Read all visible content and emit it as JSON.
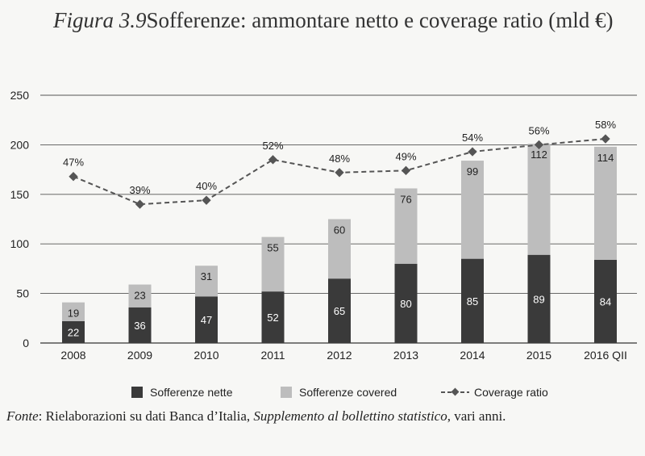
{
  "title": {
    "figure_label": "Figura 3.9",
    "text": "Sofferenze: ammontare netto e coverage ratio (mld €)"
  },
  "source": {
    "label": "Fonte",
    "text_before": ": Rielaborazioni su dati Banca d’Italia, ",
    "publication": "Supplemento al bollettino statistico",
    "text_after": ", vari anni."
  },
  "colors": {
    "nette": "#3a3a3a",
    "covered": "#bdbdbd",
    "line": "#555555",
    "grid": "#555555"
  },
  "chart_data": {
    "type": "bar",
    "stacked": true,
    "categories": [
      "2008",
      "2009",
      "2010",
      "2011",
      "2012",
      "2013",
      "2014",
      "2015",
      "2016 QII"
    ],
    "series": [
      {
        "name": "Sofferenze nette",
        "values": [
          22,
          36,
          47,
          52,
          65,
          80,
          85,
          89,
          84
        ]
      },
      {
        "name": "Sofferenze covered",
        "values": [
          19,
          23,
          31,
          55,
          60,
          76,
          99,
          112,
          114
        ]
      }
    ],
    "line_series": {
      "name": "Coverage ratio",
      "labels": [
        "47%",
        "39%",
        "40%",
        "52%",
        "48%",
        "49%",
        "54%",
        "56%",
        "58%"
      ],
      "plotted_values": [
        168,
        140,
        144,
        185,
        172,
        174,
        193,
        200,
        206
      ]
    },
    "ylim": [
      0,
      250
    ],
    "yticks": [
      0,
      50,
      100,
      150,
      200,
      250
    ],
    "grid": true,
    "legend_position": "bottom"
  }
}
